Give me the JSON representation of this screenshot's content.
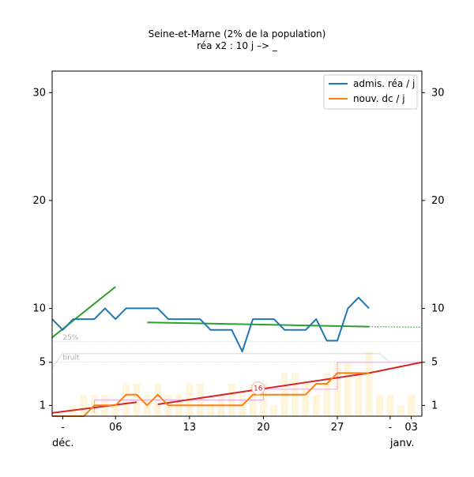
{
  "chart_data": {
    "type": "line",
    "title": "Seine-et-Marne (2% de la population)",
    "subtitle": "réa x2 : 10 j –> _",
    "x_start": "2020-11-30",
    "x_end": "2021-01-04",
    "xlim_days": [
      0,
      35
    ],
    "ylim": [
      0,
      32
    ],
    "y_ticks": [
      1,
      5,
      10,
      20,
      30
    ],
    "x_ticks": [
      {
        "day": 1,
        "label": "-"
      },
      {
        "day": 6,
        "label": "06"
      },
      {
        "day": 13,
        "label": "13"
      },
      {
        "day": 20,
        "label": "20"
      },
      {
        "day": 27,
        "label": "27"
      },
      {
        "day": 32,
        "label": "-"
      },
      {
        "day": 34,
        "label": "03"
      }
    ],
    "month_labels": [
      {
        "day": 0,
        "label": "déc."
      },
      {
        "day": 32,
        "label": "janv."
      }
    ],
    "legend": {
      "placement": "top-right",
      "entries": [
        {
          "label": "admis. réa / j",
          "color": "#1f77b4"
        },
        {
          "label": "nouv. dc / j",
          "color": "#ff7f0e"
        }
      ]
    },
    "series": [
      {
        "name": "admis. réa / j",
        "color": "#1f77b4",
        "x": [
          0,
          1,
          2,
          3,
          4,
          5,
          6,
          7,
          8,
          9,
          10,
          11,
          12,
          13,
          14,
          15,
          16,
          17,
          18,
          19,
          20,
          21,
          22,
          23,
          24,
          25,
          26,
          27,
          28,
          29,
          30
        ],
        "values": [
          9,
          8,
          9,
          9,
          9,
          10,
          9,
          10,
          10,
          10,
          10,
          9,
          9,
          9,
          9,
          8,
          8,
          8,
          6,
          9,
          9,
          9,
          8,
          8,
          8,
          9,
          7,
          7,
          10,
          11,
          10
        ]
      },
      {
        "name": "nouv. dc / j",
        "color": "#ff7f0e",
        "x": [
          0,
          1,
          2,
          3,
          4,
          5,
          6,
          7,
          8,
          9,
          10,
          11,
          12,
          13,
          14,
          15,
          16,
          17,
          18,
          19,
          20,
          21,
          22,
          23,
          24,
          25,
          26,
          27,
          28,
          29,
          30
        ],
        "values": [
          0,
          0,
          0,
          0,
          1,
          1,
          1,
          2,
          2,
          1,
          2,
          1,
          1,
          1,
          1,
          1,
          1,
          1,
          1,
          2,
          2,
          2,
          2,
          2,
          2,
          3,
          3,
          4,
          4,
          4,
          4
        ]
      }
    ],
    "trend_lines": [
      {
        "color": "#2ca02c",
        "x": [
          0,
          6
        ],
        "y": [
          7.3,
          12
        ]
      },
      {
        "color": "#2ca02c",
        "x": [
          9,
          30
        ],
        "y": [
          8.7,
          8.3
        ]
      },
      {
        "color": "#2ca02c",
        "x": [
          30,
          35
        ],
        "y": [
          8.3,
          8.25
        ],
        "dotted": true
      },
      {
        "color": "#d62728",
        "x": [
          0,
          8
        ],
        "y": [
          0.3,
          1.3
        ]
      },
      {
        "color": "#d62728",
        "x": [
          10,
          30
        ],
        "y": [
          1.1,
          4
        ]
      },
      {
        "color": "#d62728",
        "x": [
          30,
          35
        ],
        "y": [
          4,
          5
        ]
      }
    ],
    "background_bars": {
      "x": [
        2,
        3,
        4,
        5,
        6,
        7,
        8,
        9,
        10,
        11,
        12,
        13,
        14,
        15,
        16,
        17,
        18,
        19,
        20,
        21,
        22,
        23,
        24,
        25,
        26,
        27,
        28,
        29,
        30,
        31,
        32,
        33,
        34
      ],
      "values": [
        1,
        2,
        2,
        2,
        1,
        3,
        3,
        2,
        3,
        2,
        2,
        3,
        3,
        1,
        2,
        3,
        2,
        3,
        3,
        1,
        4,
        4,
        3,
        2,
        4,
        5,
        5,
        4,
        6,
        2,
        2,
        1,
        2
      ]
    },
    "reference_lines": [
      {
        "label": "25%",
        "y": 6.9
      },
      {
        "label": "bruit",
        "y": 5.0
      }
    ],
    "band": {
      "lower": 1.5,
      "upper": 5.0
    },
    "annotation": {
      "text": "16",
      "day": 19.5,
      "y": 2.6
    }
  }
}
